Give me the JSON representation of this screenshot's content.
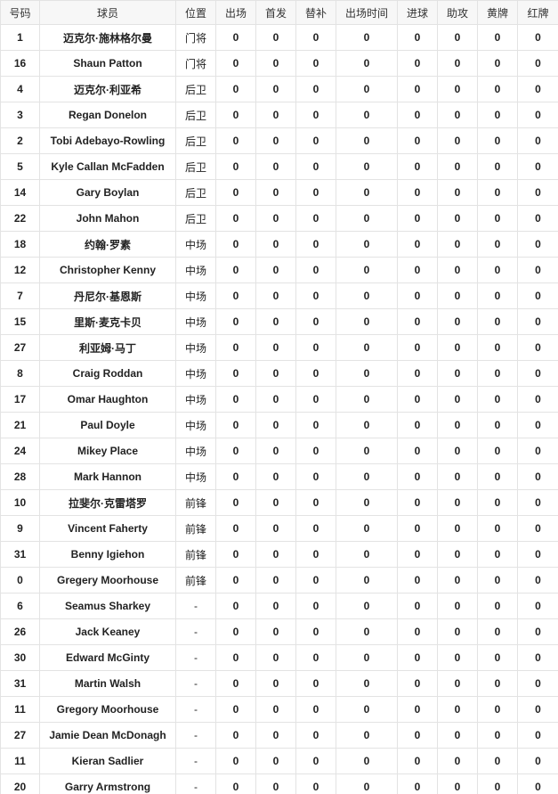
{
  "table": {
    "header": [
      "号码",
      "球员",
      "位置",
      "出场",
      "首发",
      "替补",
      "出场时间",
      "进球",
      "助攻",
      "黄牌",
      "红牌"
    ],
    "rows": [
      [
        1,
        "迈克尔·施林格尔曼",
        "门将",
        0,
        0,
        0,
        0,
        0,
        0,
        0,
        0
      ],
      [
        16,
        "Shaun Patton",
        "门将",
        0,
        0,
        0,
        0,
        0,
        0,
        0,
        0
      ],
      [
        4,
        "迈克尔·利亚希",
        "后卫",
        0,
        0,
        0,
        0,
        0,
        0,
        0,
        0
      ],
      [
        3,
        "Regan Donelon",
        "后卫",
        0,
        0,
        0,
        0,
        0,
        0,
        0,
        0
      ],
      [
        2,
        "Tobi Adebayo-Rowling",
        "后卫",
        0,
        0,
        0,
        0,
        0,
        0,
        0,
        0
      ],
      [
        5,
        "Kyle Callan McFadden",
        "后卫",
        0,
        0,
        0,
        0,
        0,
        0,
        0,
        0
      ],
      [
        14,
        "Gary Boylan",
        "后卫",
        0,
        0,
        0,
        0,
        0,
        0,
        0,
        0
      ],
      [
        22,
        "John Mahon",
        "后卫",
        0,
        0,
        0,
        0,
        0,
        0,
        0,
        0
      ],
      [
        18,
        "约翰·罗素",
        "中场",
        0,
        0,
        0,
        0,
        0,
        0,
        0,
        0
      ],
      [
        12,
        "Christopher Kenny",
        "中场",
        0,
        0,
        0,
        0,
        0,
        0,
        0,
        0
      ],
      [
        7,
        "丹尼尔·基恩斯",
        "中场",
        0,
        0,
        0,
        0,
        0,
        0,
        0,
        0
      ],
      [
        15,
        "里斯·麦克卡贝",
        "中场",
        0,
        0,
        0,
        0,
        0,
        0,
        0,
        0
      ],
      [
        27,
        "利亚姆·马丁",
        "中场",
        0,
        0,
        0,
        0,
        0,
        0,
        0,
        0
      ],
      [
        8,
        "Craig Roddan",
        "中场",
        0,
        0,
        0,
        0,
        0,
        0,
        0,
        0
      ],
      [
        17,
        "Omar Haughton",
        "中场",
        0,
        0,
        0,
        0,
        0,
        0,
        0,
        0
      ],
      [
        21,
        "Paul Doyle",
        "中场",
        0,
        0,
        0,
        0,
        0,
        0,
        0,
        0
      ],
      [
        24,
        "Mikey Place",
        "中场",
        0,
        0,
        0,
        0,
        0,
        0,
        0,
        0
      ],
      [
        28,
        "Mark Hannon",
        "中场",
        0,
        0,
        0,
        0,
        0,
        0,
        0,
        0
      ],
      [
        10,
        "拉斐尔·克雷塔罗",
        "前锋",
        0,
        0,
        0,
        0,
        0,
        0,
        0,
        0
      ],
      [
        9,
        "Vincent Faherty",
        "前锋",
        0,
        0,
        0,
        0,
        0,
        0,
        0,
        0
      ],
      [
        31,
        "Benny Igiehon",
        "前锋",
        0,
        0,
        0,
        0,
        0,
        0,
        0,
        0
      ],
      [
        0,
        "Gregery Moorhouse",
        "前锋",
        0,
        0,
        0,
        0,
        0,
        0,
        0,
        0
      ],
      [
        6,
        "Seamus Sharkey",
        "-",
        0,
        0,
        0,
        0,
        0,
        0,
        0,
        0
      ],
      [
        26,
        "Jack Keaney",
        "-",
        0,
        0,
        0,
        0,
        0,
        0,
        0,
        0
      ],
      [
        30,
        "Edward McGinty",
        "-",
        0,
        0,
        0,
        0,
        0,
        0,
        0,
        0
      ],
      [
        31,
        "Martin Walsh",
        "-",
        0,
        0,
        0,
        0,
        0,
        0,
        0,
        0
      ],
      [
        11,
        "Gregory Moorhouse",
        "-",
        0,
        0,
        0,
        0,
        0,
        0,
        0,
        0
      ],
      [
        27,
        "Jamie Dean McDonagh",
        "-",
        0,
        0,
        0,
        0,
        0,
        0,
        0,
        0
      ],
      [
        11,
        "Kieran Sadlier",
        "-",
        0,
        0,
        0,
        0,
        0,
        0,
        0,
        0
      ],
      [
        20,
        "Garry Armstrong",
        "-",
        0,
        0,
        0,
        0,
        0,
        0,
        0,
        0
      ]
    ]
  }
}
